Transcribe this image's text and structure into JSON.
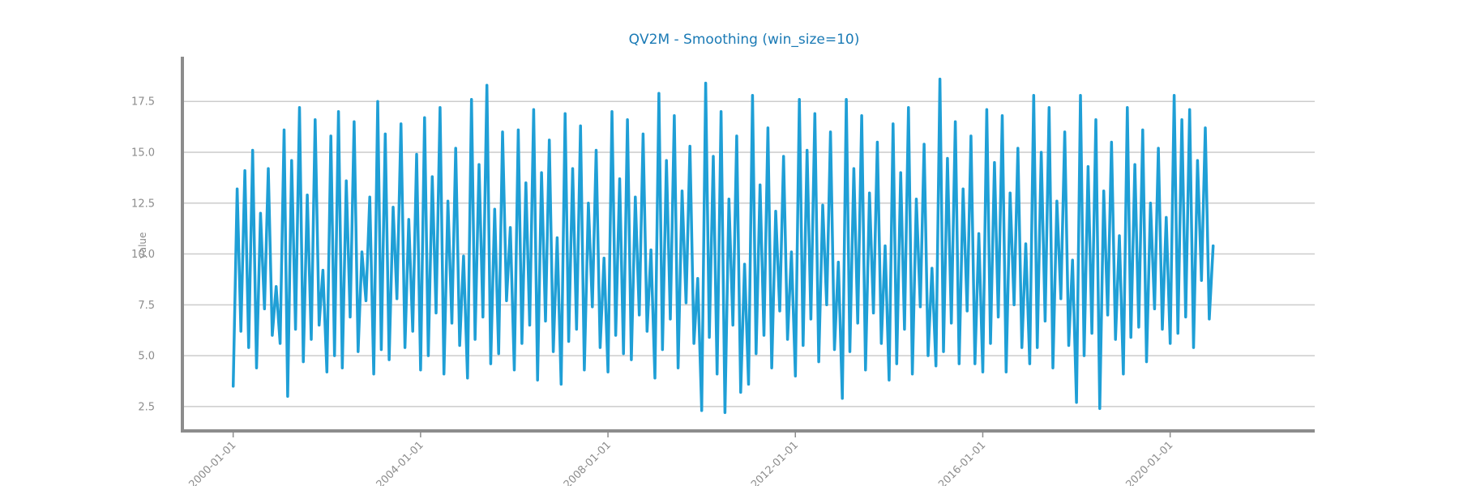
{
  "chart_data": {
    "type": "line",
    "title": "QV2M - Smoothing (win_size=10)",
    "xlabel": "",
    "ylabel": "value",
    "x_range": [
      "1998-12-01",
      "2023-02-01"
    ],
    "ylim": [
      1.3,
      19.7
    ],
    "yticks": [
      2.5,
      5.0,
      7.5,
      10.0,
      12.5,
      15.0,
      17.5
    ],
    "ytick_labels": [
      "2.5",
      "5.0",
      "7.5",
      "10.0",
      "12.5",
      "15.0",
      "17.5"
    ],
    "xticks": [
      "2000-01-01",
      "2004-01-01",
      "2008-01-01",
      "2012-01-01",
      "2016-01-01",
      "2020-01-01"
    ],
    "grid": "horizontal",
    "series": [
      {
        "color": "#1f9fd6",
        "x": [
          "2000-01-01",
          "2000-02-01",
          "2000-03-01",
          "2000-04-01",
          "2000-05-01",
          "2000-06-01",
          "2000-07-01",
          "2000-08-01",
          "2000-09-01",
          "2000-10-01",
          "2000-11-01",
          "2000-12-01",
          "2001-01-01",
          "2001-02-01",
          "2001-03-01",
          "2001-04-01",
          "2001-05-01",
          "2001-06-01",
          "2001-07-01",
          "2001-08-01",
          "2001-09-01",
          "2001-10-01",
          "2001-11-01",
          "2001-12-01",
          "2002-01-01",
          "2002-02-01",
          "2002-03-01",
          "2002-04-01",
          "2002-05-01",
          "2002-06-01",
          "2002-07-01",
          "2002-08-01",
          "2002-09-01",
          "2002-10-01",
          "2002-11-01",
          "2002-12-01",
          "2003-01-01",
          "2003-02-01",
          "2003-03-01",
          "2003-04-01",
          "2003-05-01",
          "2003-06-01",
          "2003-07-01",
          "2003-08-01",
          "2003-09-01",
          "2003-10-01",
          "2003-11-01",
          "2003-12-01",
          "2004-01-01",
          "2004-02-01",
          "2004-03-01",
          "2004-04-01",
          "2004-05-01",
          "2004-06-01",
          "2004-07-01",
          "2004-08-01",
          "2004-09-01",
          "2004-10-01",
          "2004-11-01",
          "2004-12-01",
          "2005-01-01",
          "2005-02-01",
          "2005-03-01",
          "2005-04-01",
          "2005-05-01",
          "2005-06-01",
          "2005-07-01",
          "2005-08-01",
          "2005-09-01",
          "2005-10-01",
          "2005-11-01",
          "2005-12-01",
          "2006-01-01",
          "2006-02-01",
          "2006-03-01",
          "2006-04-01",
          "2006-05-01",
          "2006-06-01",
          "2006-07-01",
          "2006-08-01",
          "2006-09-01",
          "2006-10-01",
          "2006-11-01",
          "2006-12-01",
          "2007-01-01",
          "2007-02-01",
          "2007-03-01",
          "2007-04-01",
          "2007-05-01",
          "2007-06-01",
          "2007-07-01",
          "2007-08-01",
          "2007-09-01",
          "2007-10-01",
          "2007-11-01",
          "2007-12-01",
          "2008-01-01",
          "2008-02-01",
          "2008-03-01",
          "2008-04-01",
          "2008-05-01",
          "2008-06-01",
          "2008-07-01",
          "2008-08-01",
          "2008-09-01",
          "2008-10-01",
          "2008-11-01",
          "2008-12-01",
          "2009-01-01",
          "2009-02-01",
          "2009-03-01",
          "2009-04-01",
          "2009-05-01",
          "2009-06-01",
          "2009-07-01",
          "2009-08-01",
          "2009-09-01",
          "2009-10-01",
          "2009-11-01",
          "2009-12-01",
          "2010-01-01",
          "2010-02-01",
          "2010-03-01",
          "2010-04-01",
          "2010-05-01",
          "2010-06-01",
          "2010-07-01",
          "2010-08-01",
          "2010-09-01",
          "2010-10-01",
          "2010-11-01",
          "2010-12-01",
          "2011-01-01",
          "2011-02-01",
          "2011-03-01",
          "2011-04-01",
          "2011-05-01",
          "2011-06-01",
          "2011-07-01",
          "2011-08-01",
          "2011-09-01",
          "2011-10-01",
          "2011-11-01",
          "2011-12-01",
          "2012-01-01",
          "2012-02-01",
          "2012-03-01",
          "2012-04-01",
          "2012-05-01",
          "2012-06-01",
          "2012-07-01",
          "2012-08-01",
          "2012-09-01",
          "2012-10-01",
          "2012-11-01",
          "2012-12-01",
          "2013-01-01",
          "2013-02-01",
          "2013-03-01",
          "2013-04-01",
          "2013-05-01",
          "2013-06-01",
          "2013-07-01",
          "2013-08-01",
          "2013-09-01",
          "2013-10-01",
          "2013-11-01",
          "2013-12-01",
          "2014-01-01",
          "2014-02-01",
          "2014-03-01",
          "2014-04-01",
          "2014-05-01",
          "2014-06-01",
          "2014-07-01",
          "2014-08-01",
          "2014-09-01",
          "2014-10-01",
          "2014-11-01",
          "2014-12-01",
          "2015-01-01",
          "2015-02-01",
          "2015-03-01",
          "2015-04-01",
          "2015-05-01",
          "2015-06-01",
          "2015-07-01",
          "2015-08-01",
          "2015-09-01",
          "2015-10-01",
          "2015-11-01",
          "2015-12-01",
          "2016-01-01",
          "2016-02-01",
          "2016-03-01",
          "2016-04-01",
          "2016-05-01",
          "2016-06-01",
          "2016-07-01",
          "2016-08-01",
          "2016-09-01",
          "2016-10-01",
          "2016-11-01",
          "2016-12-01",
          "2017-01-01",
          "2017-02-01",
          "2017-03-01",
          "2017-04-01",
          "2017-05-01",
          "2017-06-01",
          "2017-07-01",
          "2017-08-01",
          "2017-09-01",
          "2017-10-01",
          "2017-11-01",
          "2017-12-01",
          "2018-01-01",
          "2018-02-01",
          "2018-03-01",
          "2018-04-01",
          "2018-05-01",
          "2018-06-01",
          "2018-07-01",
          "2018-08-01",
          "2018-09-01",
          "2018-10-01",
          "2018-11-01",
          "2018-12-01",
          "2019-01-01",
          "2019-02-01",
          "2019-03-01",
          "2019-04-01",
          "2019-05-01",
          "2019-06-01",
          "2019-07-01",
          "2019-08-01",
          "2019-09-01",
          "2019-10-01",
          "2019-11-01",
          "2019-12-01",
          "2020-01-01",
          "2020-02-01",
          "2020-03-01",
          "2020-04-01",
          "2020-05-01",
          "2020-06-01",
          "2020-07-01",
          "2020-08-01",
          "2020-09-01",
          "2020-10-01",
          "2020-11-01",
          "2020-12-01"
        ],
        "y": [
          3.5,
          13.2,
          6.2,
          14.1,
          5.4,
          15.1,
          4.4,
          12.0,
          7.3,
          14.2,
          6.0,
          8.4,
          5.6,
          16.1,
          3.0,
          14.6,
          6.3,
          17.2,
          4.7,
          12.9,
          5.8,
          16.6,
          6.5,
          9.2,
          4.2,
          15.8,
          5.0,
          17.0,
          4.4,
          13.6,
          6.9,
          16.5,
          5.2,
          10.1,
          7.7,
          12.8,
          4.1,
          17.5,
          5.3,
          15.9,
          4.8,
          12.3,
          7.8,
          16.4,
          5.4,
          11.7,
          6.2,
          14.9,
          4.3,
          16.7,
          5.0,
          13.8,
          7.1,
          17.2,
          4.1,
          12.6,
          6.6,
          15.2,
          5.5,
          9.9,
          3.9,
          17.6,
          5.8,
          14.4,
          6.9,
          18.3,
          4.6,
          12.2,
          5.1,
          16.0,
          7.7,
          11.3,
          4.3,
          16.1,
          5.6,
          13.5,
          6.5,
          17.1,
          3.8,
          14.0,
          6.7,
          15.6,
          5.2,
          10.8,
          3.6,
          16.9,
          5.7,
          14.2,
          6.3,
          16.3,
          4.3,
          12.5,
          7.4,
          15.1,
          5.4,
          9.8,
          4.2,
          17.0,
          6.0,
          13.7,
          5.1,
          16.6,
          4.8,
          12.8,
          7.0,
          15.9,
          6.2,
          10.2,
          3.9,
          17.9,
          5.3,
          14.6,
          6.8,
          16.8,
          4.4,
          13.1,
          7.6,
          15.3,
          5.6,
          8.8,
          2.3,
          18.4,
          5.9,
          14.8,
          4.1,
          17.0,
          2.2,
          12.7,
          6.5,
          15.8,
          3.2,
          9.5,
          3.6,
          17.8,
          5.1,
          13.4,
          6.0,
          16.2,
          4.4,
          12.1,
          7.2,
          14.8,
          5.8,
          10.1,
          4.0,
          17.6,
          5.5,
          15.1,
          6.8,
          16.9,
          4.7,
          12.4,
          7.5,
          16.0,
          5.3,
          9.6,
          2.9,
          17.6,
          5.2,
          14.2,
          6.6,
          16.8,
          4.3,
          13.0,
          7.1,
          15.5,
          5.6,
          10.4,
          3.8,
          16.4,
          4.6,
          14.0,
          6.3,
          17.2,
          4.1,
          12.7,
          7.4,
          15.4,
          5.0,
          9.3,
          4.5,
          18.6,
          5.2,
          14.7,
          6.6,
          16.5,
          4.6,
          13.2,
          7.2,
          15.8,
          4.6,
          11.0,
          4.2,
          17.1,
          5.6,
          14.5,
          6.9,
          16.8,
          4.2,
          13.0,
          7.5,
          15.2,
          5.4,
          10.5,
          4.6,
          17.8,
          5.4,
          15.0,
          6.7,
          17.2,
          4.4,
          12.6,
          7.8,
          16.0,
          5.5,
          9.7,
          2.7,
          17.8,
          5.0,
          14.3,
          6.1,
          16.6,
          2.4,
          13.1,
          7.0,
          15.5,
          5.8,
          10.9,
          4.1,
          17.2,
          5.9,
          14.4,
          6.4,
          16.1,
          4.7,
          12.5,
          7.3,
          15.2,
          6.3,
          11.8,
          5.6,
          17.8,
          6.1,
          16.6,
          6.9,
          17.1,
          5.4,
          14.6,
          8.7,
          16.2,
          6.8,
          10.4
        ]
      }
    ]
  }
}
